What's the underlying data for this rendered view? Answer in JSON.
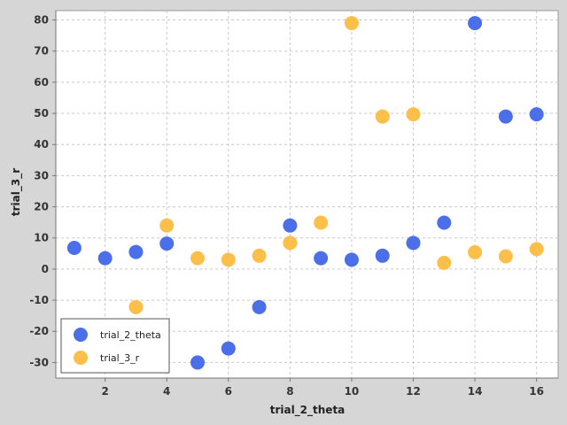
{
  "chart_data": {
    "type": "scatter",
    "xlabel": "trial_2_theta",
    "ylabel": "trial_3_r",
    "xlim": [
      0.4,
      16.7
    ],
    "ylim": [
      -35,
      83
    ],
    "xticks": [
      2,
      4,
      6,
      8,
      10,
      12,
      14,
      16
    ],
    "yticks": [
      -30,
      -20,
      -10,
      0,
      10,
      20,
      30,
      40,
      50,
      60,
      70,
      80
    ],
    "grid": true,
    "legend_position": "bottom-left",
    "series": [
      {
        "name": "trial_2_theta",
        "color": "#4a6fe8",
        "x": [
          1,
          2,
          3,
          4,
          5,
          6,
          7,
          8,
          9,
          10,
          11,
          12,
          13,
          14,
          15,
          16
        ],
        "y": [
          6.8,
          3.5,
          5.5,
          8.2,
          -30,
          -25.5,
          -12.2,
          14,
          3.5,
          3,
          4.3,
          8.4,
          14.9,
          79,
          49,
          49.7
        ]
      },
      {
        "name": "trial_3_r",
        "color": "#fcbf49",
        "x": [
          3,
          4,
          5,
          6,
          7,
          8,
          9,
          10,
          11,
          12,
          13,
          14,
          15,
          16
        ],
        "y": [
          -12.2,
          14,
          3.5,
          3,
          4.3,
          8.4,
          14.9,
          79,
          49,
          49.7,
          2,
          5.4,
          4.1,
          6.4
        ]
      }
    ]
  }
}
